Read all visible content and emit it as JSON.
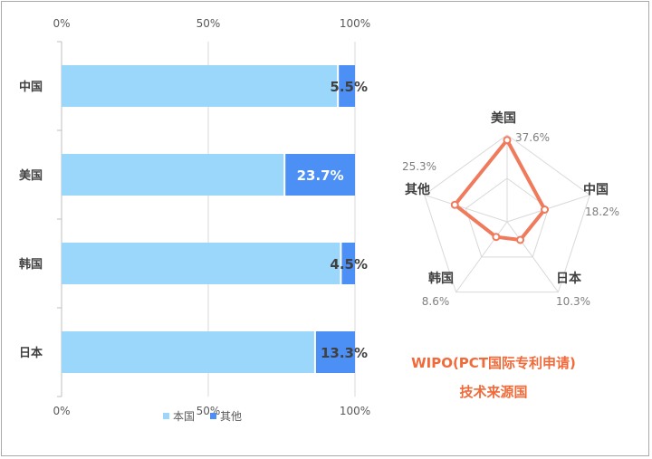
{
  "chart_data": [
    {
      "type": "bar",
      "subtype": "stacked-100-horizontal",
      "categories": [
        "中国",
        "美国",
        "韩国",
        "日本"
      ],
      "series": [
        {
          "name": "本国",
          "values": [
            94.5,
            76.3,
            95.5,
            86.7
          ],
          "color": "#9bd7fb"
        },
        {
          "name": "其他",
          "values": [
            5.5,
            23.7,
            4.5,
            13.3
          ],
          "color": "#4d90f5"
        }
      ],
      "data_labels": [
        "5.5%",
        "23.7%",
        "4.5%",
        "13.3%"
      ],
      "x_ticks": [
        "0%",
        "50%",
        "100%"
      ],
      "xlim": [
        0,
        100
      ],
      "grid": true,
      "legend_position": "bottom"
    },
    {
      "type": "radar",
      "categories": [
        "美国",
        "中国",
        "日本",
        "韩国",
        "其他"
      ],
      "values": [
        37.6,
        18.2,
        10.3,
        8.6,
        25.3
      ],
      "value_labels": [
        "37.6%",
        "18.2%",
        "10.3%",
        "8.6%",
        "25.3%"
      ],
      "rmax": 40,
      "series_color": "#f07a5c",
      "title_lines": [
        "WIPO(PCT国际专利申请)",
        "技术来源国"
      ],
      "title_color": "#f06a3a"
    }
  ]
}
